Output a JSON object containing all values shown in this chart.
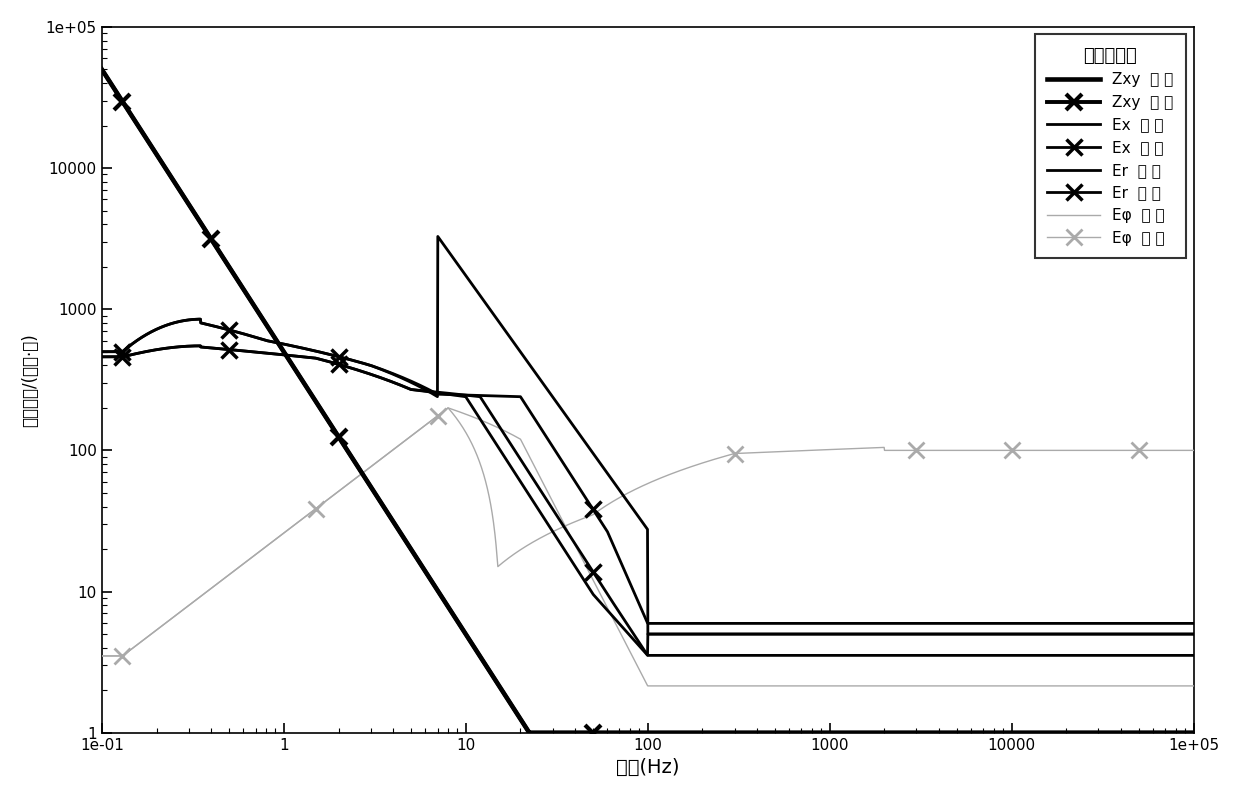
{
  "xlabel": "频率(Hz)",
  "ylabel": "视电阻率/(欧姆·米)",
  "xlim": [
    0.1,
    100000
  ],
  "ylim": [
    1,
    100000
  ],
  "legend_title": "水平电偶源",
  "col_black": "#000000",
  "col_gray": "#aaaaaa",
  "lw_thick": 2.8,
  "lw_med": 2.0,
  "lw_thin": 1.0,
  "ms": 11,
  "mew": 2.5
}
